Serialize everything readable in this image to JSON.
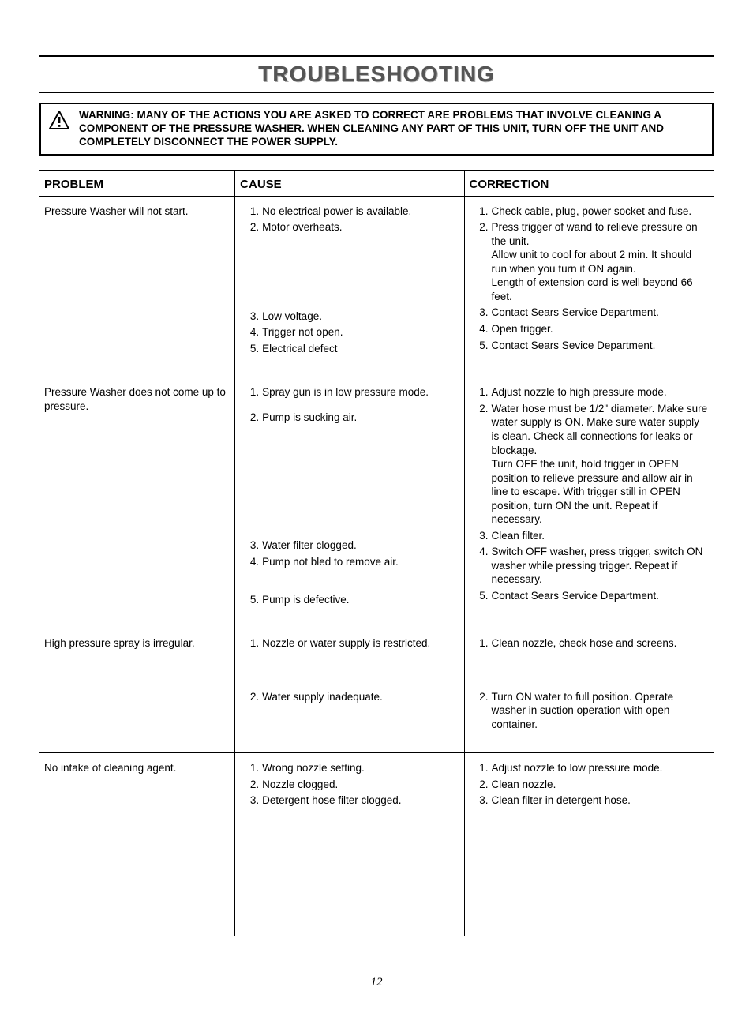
{
  "title": "TROUBLESHOOTING",
  "warning": {
    "label": "WARNING:",
    "text": "MANY OF THE ACTIONS YOU ARE ASKED TO CORRECT ARE PROBLEMS THAT INVOLVE CLEANING A COMPONENT OF THE PRESSURE WASHER. WHEN CLEANING ANY PART OF THIS UNIT, TURN OFF THE UNIT AND COMPLETELY DISCONNECT THE POWER SUPPLY."
  },
  "headers": {
    "problem": "PROBLEM",
    "cause": "CAUSE",
    "correction": "CORRECTION"
  },
  "rows": [
    {
      "problem": "Pressure Washer will not start.",
      "causes": [
        "No electrical power is available.",
        "Motor overheats.",
        "Low voltage.",
        "Trigger not open.",
        "Electrical defect"
      ],
      "cause_gaps_after": {
        "1": 95
      },
      "corrections": [
        "Check cable, plug, power socket and fuse.",
        "Press trigger of wand to relieve pressure on the unit.\nAllow unit to cool for about 2 min. It should run when you turn it ON again.\nLength of extension cord is well beyond 66 feet.",
        "Contact Sears Service Department.",
        "Open trigger.",
        "Contact Sears Sevice Department."
      ]
    },
    {
      "problem": "Pressure Washer does not come up to pressure.",
      "causes": [
        "Spray gun is in low pressure mode.",
        "Pump is sucking air.",
        "Water filter clogged.",
        "Pump not bled to remove air.",
        "Pump is defective."
      ],
      "cause_gaps_after": {
        "0": 14,
        "1": 145,
        "3": 30
      },
      "corrections": [
        "Adjust nozzle to high pressure mode.",
        "Water hose must be 1/2\" diameter. Make sure water supply is ON. Make sure water supply is clean. Check all connections for leaks or blockage.\nTurn OFF the unit, hold trigger in OPEN position to relieve pressure and allow air in line to escape. With trigger still in OPEN position, turn ON the unit. Repeat if necessary.",
        "Clean filter.",
        "Switch OFF washer, press trigger, switch ON washer while pressing trigger.  Repeat if necessary.",
        "Contact Sears Service Department."
      ]
    },
    {
      "problem": "High pressure spray is irregular.",
      "causes": [
        "Nozzle or water supply is restricted.",
        "Water supply inadequate."
      ],
      "cause_gaps_after": {
        "0": 50
      },
      "corrections": [
        "Clean  nozzle, check  hose and screens.",
        "Turn ON water to full position. Operate washer in suction operation with open container."
      ],
      "correction_gaps_after": {
        "0": 50
      }
    },
    {
      "problem": "No intake of cleaning agent.",
      "causes": [
        "Wrong nozzle setting.",
        "Nozzle clogged.",
        "Detergent hose filter clogged."
      ],
      "corrections": [
        "Adjust nozzle to low pressure mode.",
        "Clean nozzle.",
        "Clean filter in detergent hose."
      ],
      "extra_bottom": 160
    }
  ],
  "page_number": "12"
}
